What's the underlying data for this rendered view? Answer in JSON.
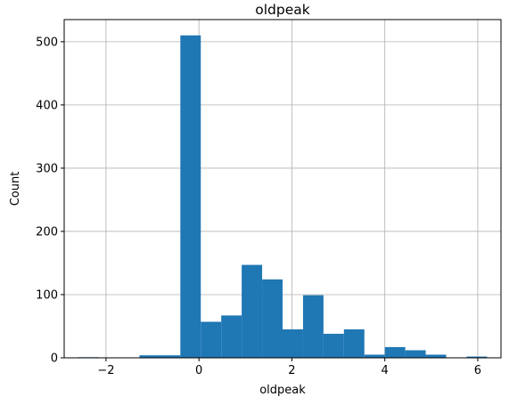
{
  "chart_data": {
    "type": "bar",
    "title": "oldpeak",
    "xlabel": "oldpeak",
    "ylabel": "Count",
    "xlim": [
      -2.9,
      6.5
    ],
    "ylim": [
      0,
      535
    ],
    "grid": true,
    "bar_color": "#1f77b4",
    "bins": [
      {
        "x0": -2.6,
        "x1": -2.16,
        "count": 1
      },
      {
        "x0": -2.16,
        "x1": -1.72,
        "count": 0
      },
      {
        "x0": -1.72,
        "x1": -1.28,
        "count": 0
      },
      {
        "x0": -1.28,
        "x1": -0.84,
        "count": 4
      },
      {
        "x0": -0.84,
        "x1": -0.4,
        "count": 4
      },
      {
        "x0": -0.4,
        "x1": 0.04,
        "count": 510
      },
      {
        "x0": 0.04,
        "x1": 0.48,
        "count": 57
      },
      {
        "x0": 0.48,
        "x1": 0.92,
        "count": 67
      },
      {
        "x0": 0.92,
        "x1": 1.36,
        "count": 147
      },
      {
        "x0": 1.36,
        "x1": 1.8,
        "count": 124
      },
      {
        "x0": 1.8,
        "x1": 2.24,
        "count": 45
      },
      {
        "x0": 2.24,
        "x1": 2.68,
        "count": 99
      },
      {
        "x0": 2.68,
        "x1": 3.12,
        "count": 38
      },
      {
        "x0": 3.12,
        "x1": 3.56,
        "count": 45
      },
      {
        "x0": 3.56,
        "x1": 4.0,
        "count": 5
      },
      {
        "x0": 4.0,
        "x1": 4.44,
        "count": 17
      },
      {
        "x0": 4.44,
        "x1": 4.88,
        "count": 12
      },
      {
        "x0": 4.88,
        "x1": 5.32,
        "count": 5
      },
      {
        "x0": 5.32,
        "x1": 5.76,
        "count": 0
      },
      {
        "x0": 5.76,
        "x1": 6.2,
        "count": 2
      }
    ],
    "x_ticks": [
      -2,
      0,
      2,
      4,
      6
    ],
    "x_tick_labels": [
      "−2",
      "0",
      "2",
      "4",
      "6"
    ],
    "y_ticks": [
      0,
      100,
      200,
      300,
      400,
      500
    ],
    "y_tick_labels": [
      "0",
      "100",
      "200",
      "300",
      "400",
      "500"
    ]
  }
}
